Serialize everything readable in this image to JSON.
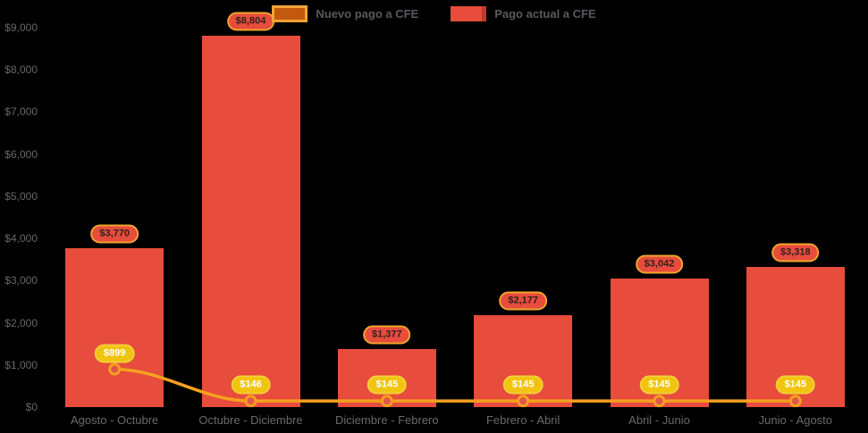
{
  "chart_data": {
    "type": "combo",
    "categories": [
      "Agosto - Octubre",
      "Octubre - Diciembre",
      "Diciembre - Febrero",
      "Febrero - Abril",
      "Abril - Junio",
      "Junio - Agosto"
    ],
    "series": [
      {
        "name": "Nuevo pago a CFE",
        "type": "line",
        "values": [
          899,
          146,
          145,
          145,
          145,
          145
        ],
        "labels": [
          "$899",
          "$146",
          "$145",
          "$145",
          "$145",
          "$145"
        ],
        "color": "#f5a01f"
      },
      {
        "name": "Pago actual a CFE",
        "type": "bar",
        "values": [
          3770,
          8804,
          1377,
          2177,
          3042,
          3318
        ],
        "labels": [
          "$3,770",
          "$8,804",
          "$1,377",
          "$2,177",
          "$3,042",
          "$3,318"
        ],
        "color": "#e74c3c"
      }
    ],
    "title": "",
    "xlabel": "",
    "ylabel": "",
    "ylim": [
      0,
      9000
    ],
    "ytick_step": 1000,
    "ytick_labels": [
      "$0",
      "$1,000",
      "$2,000",
      "$3,000",
      "$4,000",
      "$5,000",
      "$6,000",
      "$7,000",
      "$8,000",
      "$9,000"
    ],
    "grid": false,
    "legend_position": "top",
    "background": "#000000"
  },
  "colors": {
    "bar": "#e74c3c",
    "bar_dark_edge": "#c0392b",
    "line": "#f5a01f",
    "marker_fill": "#e0564a",
    "pill_bar_bg": "#e74c3c",
    "pill_bar_border": "#efa42d",
    "pill_line_bg": "#f1c40f",
    "axis_text": "#666666",
    "category_text": "#6a6a6a",
    "legend_text": "#58595b",
    "background": "#000000"
  }
}
